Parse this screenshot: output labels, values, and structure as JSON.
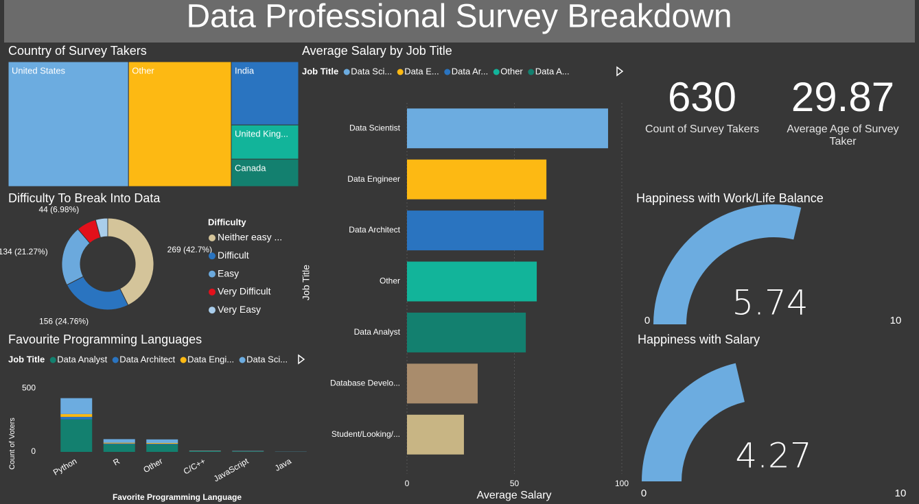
{
  "title": "Data Professional Survey Breakdown",
  "chart_data": [
    {
      "type": "treemap",
      "title": "Country of Survey Takers",
      "categories": [
        "United States",
        "Other",
        "India",
        "United King...",
        "Canada"
      ],
      "values": [
        261,
        223,
        74,
        40,
        32
      ],
      "colors": [
        "#6cace0",
        "#fdb913",
        "#2a74c0",
        "#12b49a",
        "#13806f"
      ]
    },
    {
      "type": "donut",
      "title": "Difficulty To Break Into Data",
      "legend_title": "Difficulty",
      "categories": [
        "Neither easy ...",
        "Difficult",
        "Easy",
        "Very Difficult",
        "Very Easy"
      ],
      "values": [
        269,
        156,
        134,
        44,
        27
      ],
      "value_labels": [
        "269 (42.7%)",
        "156 (24.76%)",
        "134 (21.27%)",
        "44 (6.98%)",
        null
      ],
      "colors": [
        "#d4c49a",
        "#2a74c0",
        "#6ba9dd",
        "#e3101b",
        "#a9cdeb"
      ]
    },
    {
      "type": "bar",
      "stacked": true,
      "title": "Favourite Programming Languages",
      "legend_title": "Job Title",
      "x_label": "Favorite Programming Language",
      "y_label": "Count of Voters",
      "categories": [
        "Python",
        "R",
        "Other",
        "C/C++",
        "JavaScript",
        "Java"
      ],
      "series": [
        {
          "name": "Data Analyst",
          "color": "#13806f",
          "values": [
            255,
            60,
            58,
            6,
            4,
            1
          ]
        },
        {
          "name": "Data Architect",
          "color": "#2a74c0",
          "values": [
            20,
            6,
            6,
            1,
            1,
            0
          ]
        },
        {
          "name": "Data Engi...",
          "color": "#fdb913",
          "values": [
            22,
            6,
            6,
            1,
            1,
            0
          ]
        },
        {
          "name": "Data Sci...",
          "color": "#6cace0",
          "values": [
            125,
            28,
            28,
            2,
            2,
            1
          ]
        }
      ],
      "ylim": [
        0,
        560
      ],
      "yticks": [
        0,
        500
      ]
    },
    {
      "type": "bar",
      "orientation": "horizontal",
      "title": "Average Salary by Job Title",
      "legend_title": "Job Title",
      "legend": [
        "Data Sci...",
        "Data E...",
        "Data Ar...",
        "Other",
        "Data A..."
      ],
      "x_label": "Average Salary",
      "y_label": "Job Title",
      "categories": [
        "Data Scientist",
        "Data Engineer",
        "Data Architect",
        "Other",
        "Data Analyst",
        "Database Develo...",
        "Student/Looking/..."
      ],
      "values": [
        93.6,
        64.9,
        63.6,
        60.4,
        55.3,
        32.9,
        26.5
      ],
      "colors": [
        "#6cace0",
        "#fdb913",
        "#2a74c0",
        "#12b49a",
        "#13806f",
        "#a98c6c",
        "#c8b584"
      ],
      "xlim": [
        0,
        100
      ],
      "xticks": [
        0,
        50,
        100
      ],
      "grid": true
    },
    {
      "type": "card",
      "value": 630,
      "label": "Count of Survey Takers"
    },
    {
      "type": "card",
      "value": 29.87,
      "label": "Average Age of Survey Taker"
    },
    {
      "type": "gauge",
      "title": "Happiness with Work/Life Balance",
      "value": 5.74,
      "min": 0,
      "max": 10,
      "color": "#6cace0"
    },
    {
      "type": "gauge",
      "title": "Happiness with Salary",
      "value": 4.27,
      "min": 0,
      "max": 10,
      "color": "#6cace0"
    }
  ]
}
